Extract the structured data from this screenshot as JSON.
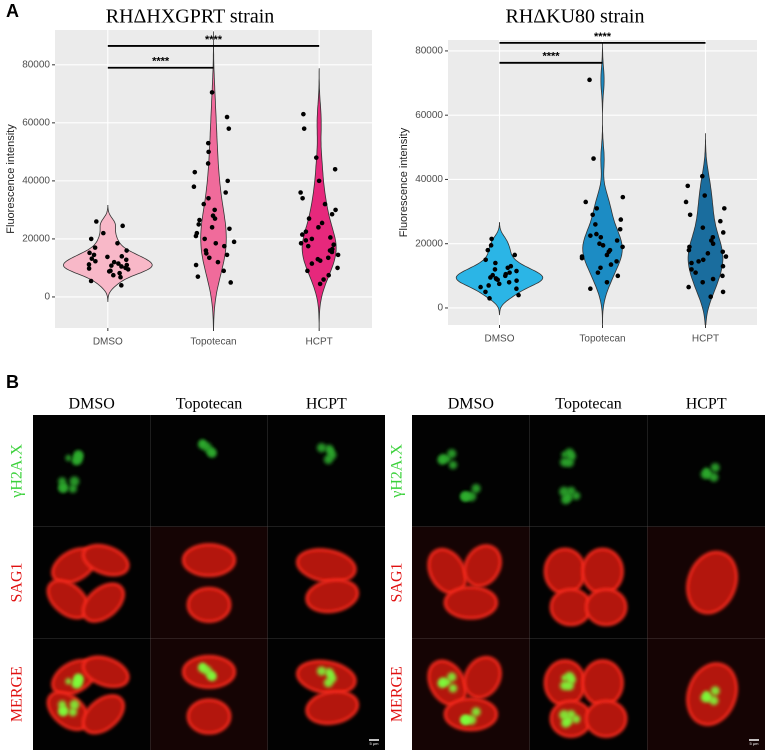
{
  "panel_a_label": "A",
  "chart_data": [
    {
      "type": "violin",
      "title": "RHΔHXGPRT strain",
      "y_label": "Fluorescence intensity",
      "categories": [
        "DMSO",
        "Topotecan",
        "HCPT"
      ],
      "colors": [
        "#f8b8c8",
        "#f06b9b",
        "#e6287c"
      ],
      "ylim": [
        -10700,
        92000
      ],
      "yticks": [
        0,
        20000,
        40000,
        60000,
        80000
      ],
      "grid": true,
      "values": [
        [
          4000,
          5500,
          6800,
          7500,
          8200,
          9000,
          9500,
          10000,
          10500,
          11000,
          11500,
          12000,
          12300,
          12800,
          13200,
          14000,
          14500,
          15200,
          16000,
          17000,
          18500,
          20000,
          22000,
          24500,
          26000,
          8800,
          10800,
          13800,
          11200,
          9800
        ],
        [
          5000,
          7000,
          9000,
          11000,
          12000,
          13500,
          15000,
          16000,
          17500,
          18500,
          20000,
          21000,
          22000,
          23500,
          25000,
          27000,
          28000,
          30000,
          32000,
          34000,
          36000,
          38000,
          40000,
          43000,
          46000,
          50000,
          53000,
          58000,
          62000,
          70500,
          14500,
          19000,
          24000,
          26500
        ],
        [
          4500,
          6000,
          7500,
          9000,
          10000,
          11500,
          12500,
          13500,
          14500,
          15500,
          16500,
          17500,
          18500,
          19500,
          20500,
          21500,
          22500,
          24000,
          25500,
          27000,
          28500,
          30000,
          32000,
          34000,
          36000,
          40000,
          44000,
          48000,
          58000,
          63000,
          16000,
          18000,
          20000,
          13000
        ]
      ],
      "annotations": [
        {
          "text": "****",
          "from": "DMSO",
          "to": "Topotecan",
          "y": 79000
        },
        {
          "text": "****",
          "from": "DMSO",
          "to": "HCPT",
          "y": 86500
        }
      ]
    },
    {
      "type": "violin",
      "title": "RHΔKU80 strain",
      "y_label": "Fluorescence intensity",
      "categories": [
        "DMSO",
        "Topotecan",
        "HCPT"
      ],
      "colors": [
        "#2bb5e6",
        "#1c8cc4",
        "#1a6d9e"
      ],
      "ylim": [
        -5300,
        83400
      ],
      "yticks": [
        0,
        20000,
        40000,
        60000,
        80000
      ],
      "grid": true,
      "values": [
        [
          3000,
          4000,
          5000,
          6000,
          6500,
          7000,
          7500,
          8000,
          8500,
          9000,
          9500,
          10000,
          10500,
          11000,
          11500,
          12000,
          12500,
          13000,
          14000,
          15000,
          16500,
          18000,
          19500,
          21500,
          9200,
          10200,
          8800
        ],
        [
          6000,
          8000,
          10000,
          11000,
          12500,
          13500,
          14500,
          15500,
          16500,
          17500,
          18000,
          19000,
          20000,
          21000,
          22000,
          23000,
          24500,
          26000,
          27500,
          29000,
          31000,
          33000,
          34500,
          46500,
          71000,
          16000,
          19500,
          22500
        ],
        [
          3500,
          5000,
          6500,
          8000,
          9000,
          10000,
          11000,
          12000,
          13000,
          14000,
          15000,
          16000,
          17000,
          18000,
          19000,
          20000,
          21000,
          22000,
          23500,
          25000,
          27000,
          29000,
          31000,
          33000,
          35000,
          38000,
          41000,
          14500,
          17500
        ]
      ],
      "annotations": [
        {
          "text": "****",
          "from": "DMSO",
          "to": "Topotecan",
          "y": 76300
        },
        {
          "text": "****",
          "from": "DMSO",
          "to": "HCPT",
          "y": 82500
        }
      ]
    }
  ],
  "panel_b": {
    "label": "B",
    "groups": [
      {
        "columns": [
          "DMSO",
          "Topotecan",
          "HCPT"
        ],
        "rows": [
          "γH2A.X",
          "SAG1",
          "MERGE"
        ],
        "scale_bar": "5 μm"
      },
      {
        "columns": [
          "DMSO",
          "Topotecan",
          "HCPT"
        ],
        "rows": [
          "γH2A.X",
          "SAG1",
          "MERGE"
        ],
        "scale_bar": "5 μm"
      }
    ]
  }
}
